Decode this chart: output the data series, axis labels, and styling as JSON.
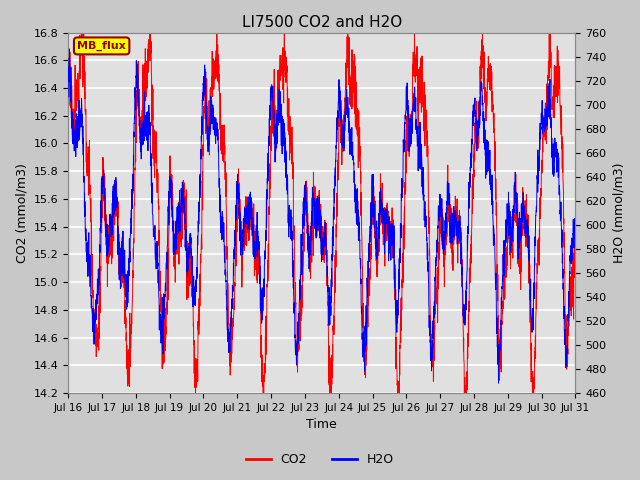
{
  "title": "LI7500 CO2 and H2O",
  "xlabel": "Time",
  "ylabel_left": "CO2 (mmol/m3)",
  "ylabel_right": "H2O (mmol/m3)",
  "co2_ylim": [
    14.2,
    16.8
  ],
  "h2o_ylim": [
    460,
    760
  ],
  "co2_color": "#FF0000",
  "h2o_color": "#0000FF",
  "fig_facecolor": "#C8C8C8",
  "plot_facecolor": "#E0E0E0",
  "annotation_text": "MB_flux",
  "annotation_bg": "#FFFF00",
  "annotation_fg": "#990000",
  "annotation_border": "#990000",
  "x_tick_labels": [
    "Jul 16",
    "Jul 17",
    "Jul 18",
    "Jul 19",
    "Jul 20",
    "Jul 21",
    "Jul 22",
    "Jul 23",
    "Jul 24",
    "Jul 25",
    "Jul 26",
    "Jul 27",
    "Jul 28",
    "Jul 29",
    "Jul 30",
    "Jul 31"
  ],
  "n_points": 3000,
  "co2_base": 15.5,
  "h2o_base": 610
}
